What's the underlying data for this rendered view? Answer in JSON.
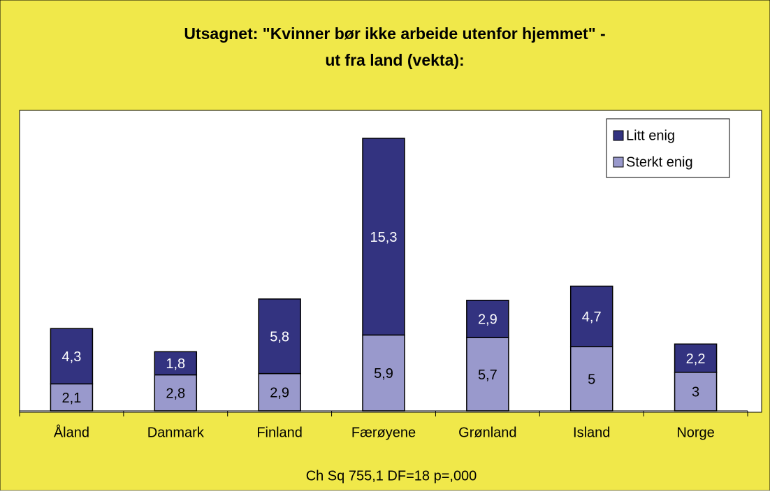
{
  "chart_data": {
    "type": "stacked_bar",
    "title": [
      "Utsagnet: \"Kvinner bør ikke arbeide utenfor hjemmet\" -",
      "ut fra land (vekta):"
    ],
    "categories": [
      "Åland",
      "Danmark",
      "Finland",
      "Færøyene",
      "Grønland",
      "Island",
      "Norge"
    ],
    "series": [
      {
        "name": "Sterkt enig",
        "color": "#9999cc",
        "values": [
          2.1,
          2.8,
          2.9,
          5.9,
          5.7,
          5,
          3
        ],
        "value_labels": [
          "2,1",
          "2,8",
          "2,9",
          "5,9",
          "5,7",
          "5",
          "3"
        ]
      },
      {
        "name": "Litt enig",
        "color": "#333380",
        "values": [
          4.3,
          1.8,
          5.8,
          15.3,
          2.9,
          4.7,
          2.2
        ],
        "value_labels": [
          "4,3",
          "1,8",
          "5,8",
          "15,3",
          "2,9",
          "4,7",
          "2,2"
        ]
      }
    ],
    "footnote": "Ch Sq 755,1 DF=18 p=,000",
    "legend": "upper right"
  }
}
